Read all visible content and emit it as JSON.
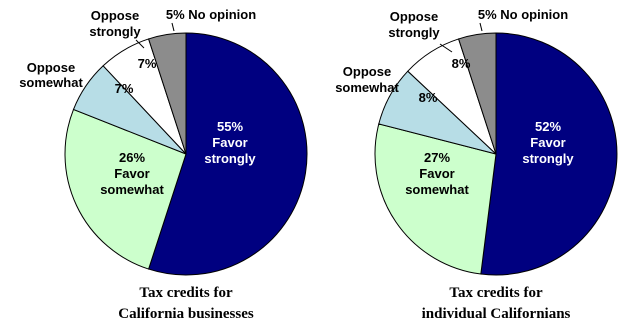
{
  "chart_data": [
    {
      "type": "pie",
      "caption": [
        "Tax credits for",
        "California businesses"
      ],
      "slices": [
        {
          "category": "Favor strongly",
          "value": 55,
          "color": "#000080",
          "text_color": "#ffffff",
          "label": [
            "55%",
            "Favor",
            "strongly"
          ]
        },
        {
          "category": "Favor somewhat",
          "value": 26,
          "color": "#ccffcc",
          "text_color": "#000000",
          "label": [
            "26%",
            "Favor",
            "somewhat"
          ]
        },
        {
          "category": "Oppose somewhat",
          "value": 7,
          "color": "#b7dde6",
          "text_color": "#000000",
          "label": [
            "7%"
          ],
          "outer_label": [
            "Oppose",
            "somewhat"
          ]
        },
        {
          "category": "Oppose strongly",
          "value": 7,
          "color": "#ffffff",
          "text_color": "#000000",
          "label": [
            "7%"
          ],
          "outer_label": [
            "Oppose",
            "strongly"
          ]
        },
        {
          "category": "No opinion",
          "value": 5,
          "color": "#8c8c8c",
          "text_color": "#000000",
          "outer_label": [
            "5% No opinion"
          ]
        }
      ]
    },
    {
      "type": "pie",
      "caption": [
        "Tax credits for",
        "individual Californians"
      ],
      "slices": [
        {
          "category": "Favor strongly",
          "value": 52,
          "color": "#000080",
          "text_color": "#ffffff",
          "label": [
            "52%",
            "Favor",
            "strongly"
          ]
        },
        {
          "category": "Favor somewhat",
          "value": 27,
          "color": "#ccffcc",
          "text_color": "#000000",
          "label": [
            "27%",
            "Favor",
            "somewhat"
          ]
        },
        {
          "category": "Oppose somewhat",
          "value": 8,
          "color": "#b7dde6",
          "text_color": "#000000",
          "label": [
            "8%"
          ],
          "outer_label": [
            "Oppose",
            "somewhat"
          ]
        },
        {
          "category": "Oppose strongly",
          "value": 8,
          "color": "#ffffff",
          "text_color": "#000000",
          "label": [
            "8%"
          ],
          "outer_label": [
            "Oppose",
            "strongly"
          ]
        },
        {
          "category": "No opinion",
          "value": 5,
          "color": "#8c8c8c",
          "text_color": "#000000",
          "outer_label": [
            "5% No opinion"
          ]
        }
      ]
    }
  ]
}
